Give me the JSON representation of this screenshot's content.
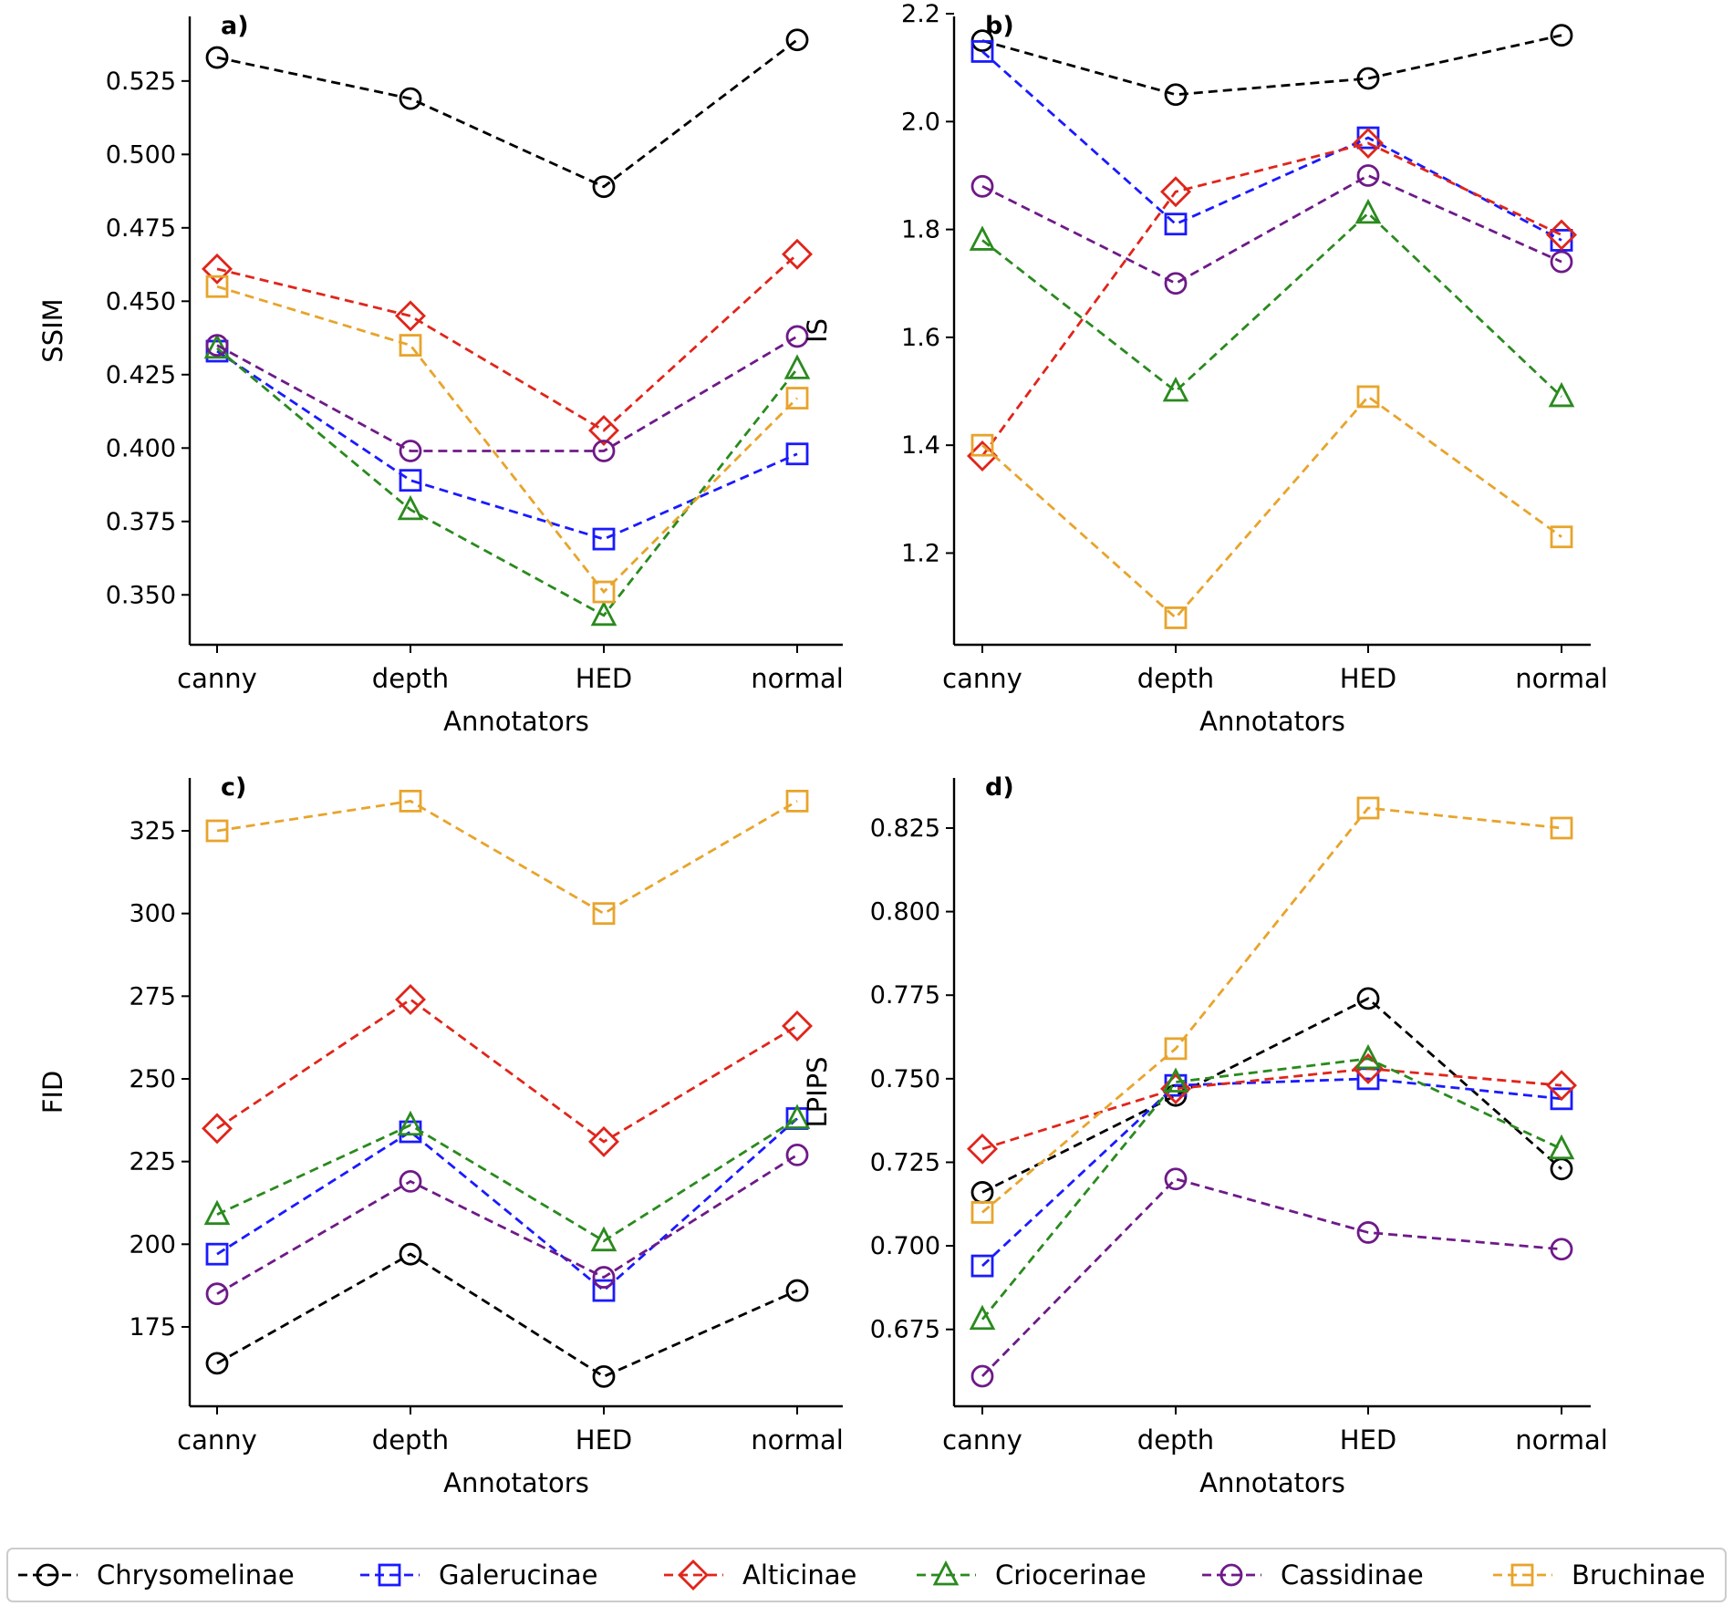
{
  "legend": {
    "entries": [
      {
        "name": "Chrysomelinae",
        "color": "#000000",
        "marker": "circle"
      },
      {
        "name": "Galerucinae",
        "color": "#1a1aff",
        "marker": "square"
      },
      {
        "name": "Alticinae",
        "color": "#e0251b",
        "marker": "diamond"
      },
      {
        "name": "Criocerinae",
        "color": "#2a8a1e",
        "marker": "triangle"
      },
      {
        "name": "Cassidinae",
        "color": "#6e1a88",
        "marker": "circle"
      },
      {
        "name": "Bruchinae",
        "color": "#e8a42c",
        "marker": "square"
      }
    ]
  },
  "chart_data": [
    {
      "type": "line",
      "panel_label": "a)",
      "xlabel": "Annotators",
      "ylabel": "SSIM",
      "categories": [
        "canny",
        "depth",
        "HED",
        "normal"
      ],
      "ylim": [
        0.333,
        0.547
      ],
      "yticks": [
        0.35,
        0.375,
        0.4,
        0.425,
        0.45,
        0.475,
        0.5,
        0.525
      ],
      "ytick_labels": [
        "0.350",
        "0.375",
        "0.400",
        "0.425",
        "0.450",
        "0.475",
        "0.500",
        "0.525"
      ],
      "series": [
        {
          "name": "Chrysomelinae",
          "values": [
            0.533,
            0.519,
            0.489,
            0.539
          ]
        },
        {
          "name": "Galerucinae",
          "values": [
            0.433,
            0.389,
            0.369,
            0.398
          ]
        },
        {
          "name": "Alticinae",
          "values": [
            0.461,
            0.445,
            0.406,
            0.466
          ]
        },
        {
          "name": "Criocerinae",
          "values": [
            0.434,
            0.379,
            0.343,
            0.427
          ]
        },
        {
          "name": "Cassidinae",
          "values": [
            0.435,
            0.399,
            0.399,
            0.438
          ]
        },
        {
          "name": "Bruchinae",
          "values": [
            0.455,
            0.435,
            0.351,
            0.417
          ]
        }
      ]
    },
    {
      "type": "line",
      "panel_label": "b)",
      "xlabel": "Annotators",
      "ylabel": "IS",
      "categories": [
        "canny",
        "depth",
        "HED",
        "normal"
      ],
      "ylim": [
        1.03,
        2.195
      ],
      "yticks": [
        1.2,
        1.4,
        1.6,
        1.8,
        2.0,
        2.2
      ],
      "ytick_labels": [
        "1.2",
        "1.4",
        "1.6",
        "1.8",
        "2.0",
        "2.2"
      ],
      "series": [
        {
          "name": "Chrysomelinae",
          "values": [
            2.15,
            2.05,
            2.08,
            2.16
          ]
        },
        {
          "name": "Galerucinae",
          "values": [
            2.13,
            1.81,
            1.97,
            1.78
          ]
        },
        {
          "name": "Alticinae",
          "values": [
            1.38,
            1.87,
            1.96,
            1.79
          ]
        },
        {
          "name": "Criocerinae",
          "values": [
            1.78,
            1.5,
            1.83,
            1.49
          ]
        },
        {
          "name": "Cassidinae",
          "values": [
            1.88,
            1.7,
            1.9,
            1.74
          ]
        },
        {
          "name": "Bruchinae",
          "values": [
            1.4,
            1.08,
            1.49,
            1.23
          ]
        }
      ]
    },
    {
      "type": "line",
      "panel_label": "c)",
      "xlabel": "Annotators",
      "ylabel": "FID",
      "categories": [
        "canny",
        "depth",
        "HED",
        "normal"
      ],
      "ylim": [
        151,
        341
      ],
      "yticks": [
        175,
        200,
        225,
        250,
        275,
        300,
        325
      ],
      "ytick_labels": [
        "175",
        "200",
        "225",
        "250",
        "275",
        "300",
        "325"
      ],
      "series": [
        {
          "name": "Chrysomelinae",
          "values": [
            164,
            197,
            160,
            186
          ]
        },
        {
          "name": "Galerucinae",
          "values": [
            197,
            234,
            186,
            238
          ]
        },
        {
          "name": "Alticinae",
          "values": [
            235,
            274,
            231,
            266
          ]
        },
        {
          "name": "Criocerinae",
          "values": [
            209,
            236,
            201,
            238
          ]
        },
        {
          "name": "Cassidinae",
          "values": [
            185,
            219,
            190,
            227
          ]
        },
        {
          "name": "Bruchinae",
          "values": [
            325,
            334,
            300,
            334
          ]
        }
      ]
    },
    {
      "type": "line",
      "panel_label": "d)",
      "xlabel": "Annotators",
      "ylabel": "LPIPS",
      "categories": [
        "canny",
        "depth",
        "HED",
        "normal"
      ],
      "ylim": [
        0.652,
        0.84
      ],
      "yticks": [
        0.675,
        0.7,
        0.725,
        0.75,
        0.775,
        0.8,
        0.825
      ],
      "ytick_labels": [
        "0.675",
        "0.700",
        "0.725",
        "0.750",
        "0.775",
        "0.800",
        "0.825"
      ],
      "series": [
        {
          "name": "Chrysomelinae",
          "values": [
            0.716,
            0.745,
            0.774,
            0.723
          ]
        },
        {
          "name": "Galerucinae",
          "values": [
            0.694,
            0.748,
            0.75,
            0.744
          ]
        },
        {
          "name": "Alticinae",
          "values": [
            0.729,
            0.747,
            0.753,
            0.748
          ]
        },
        {
          "name": "Criocerinae",
          "values": [
            0.678,
            0.749,
            0.756,
            0.729
          ]
        },
        {
          "name": "Cassidinae",
          "values": [
            0.661,
            0.72,
            0.704,
            0.699
          ]
        },
        {
          "name": "Bruchinae",
          "values": [
            0.71,
            0.759,
            0.831,
            0.825
          ]
        }
      ]
    }
  ]
}
